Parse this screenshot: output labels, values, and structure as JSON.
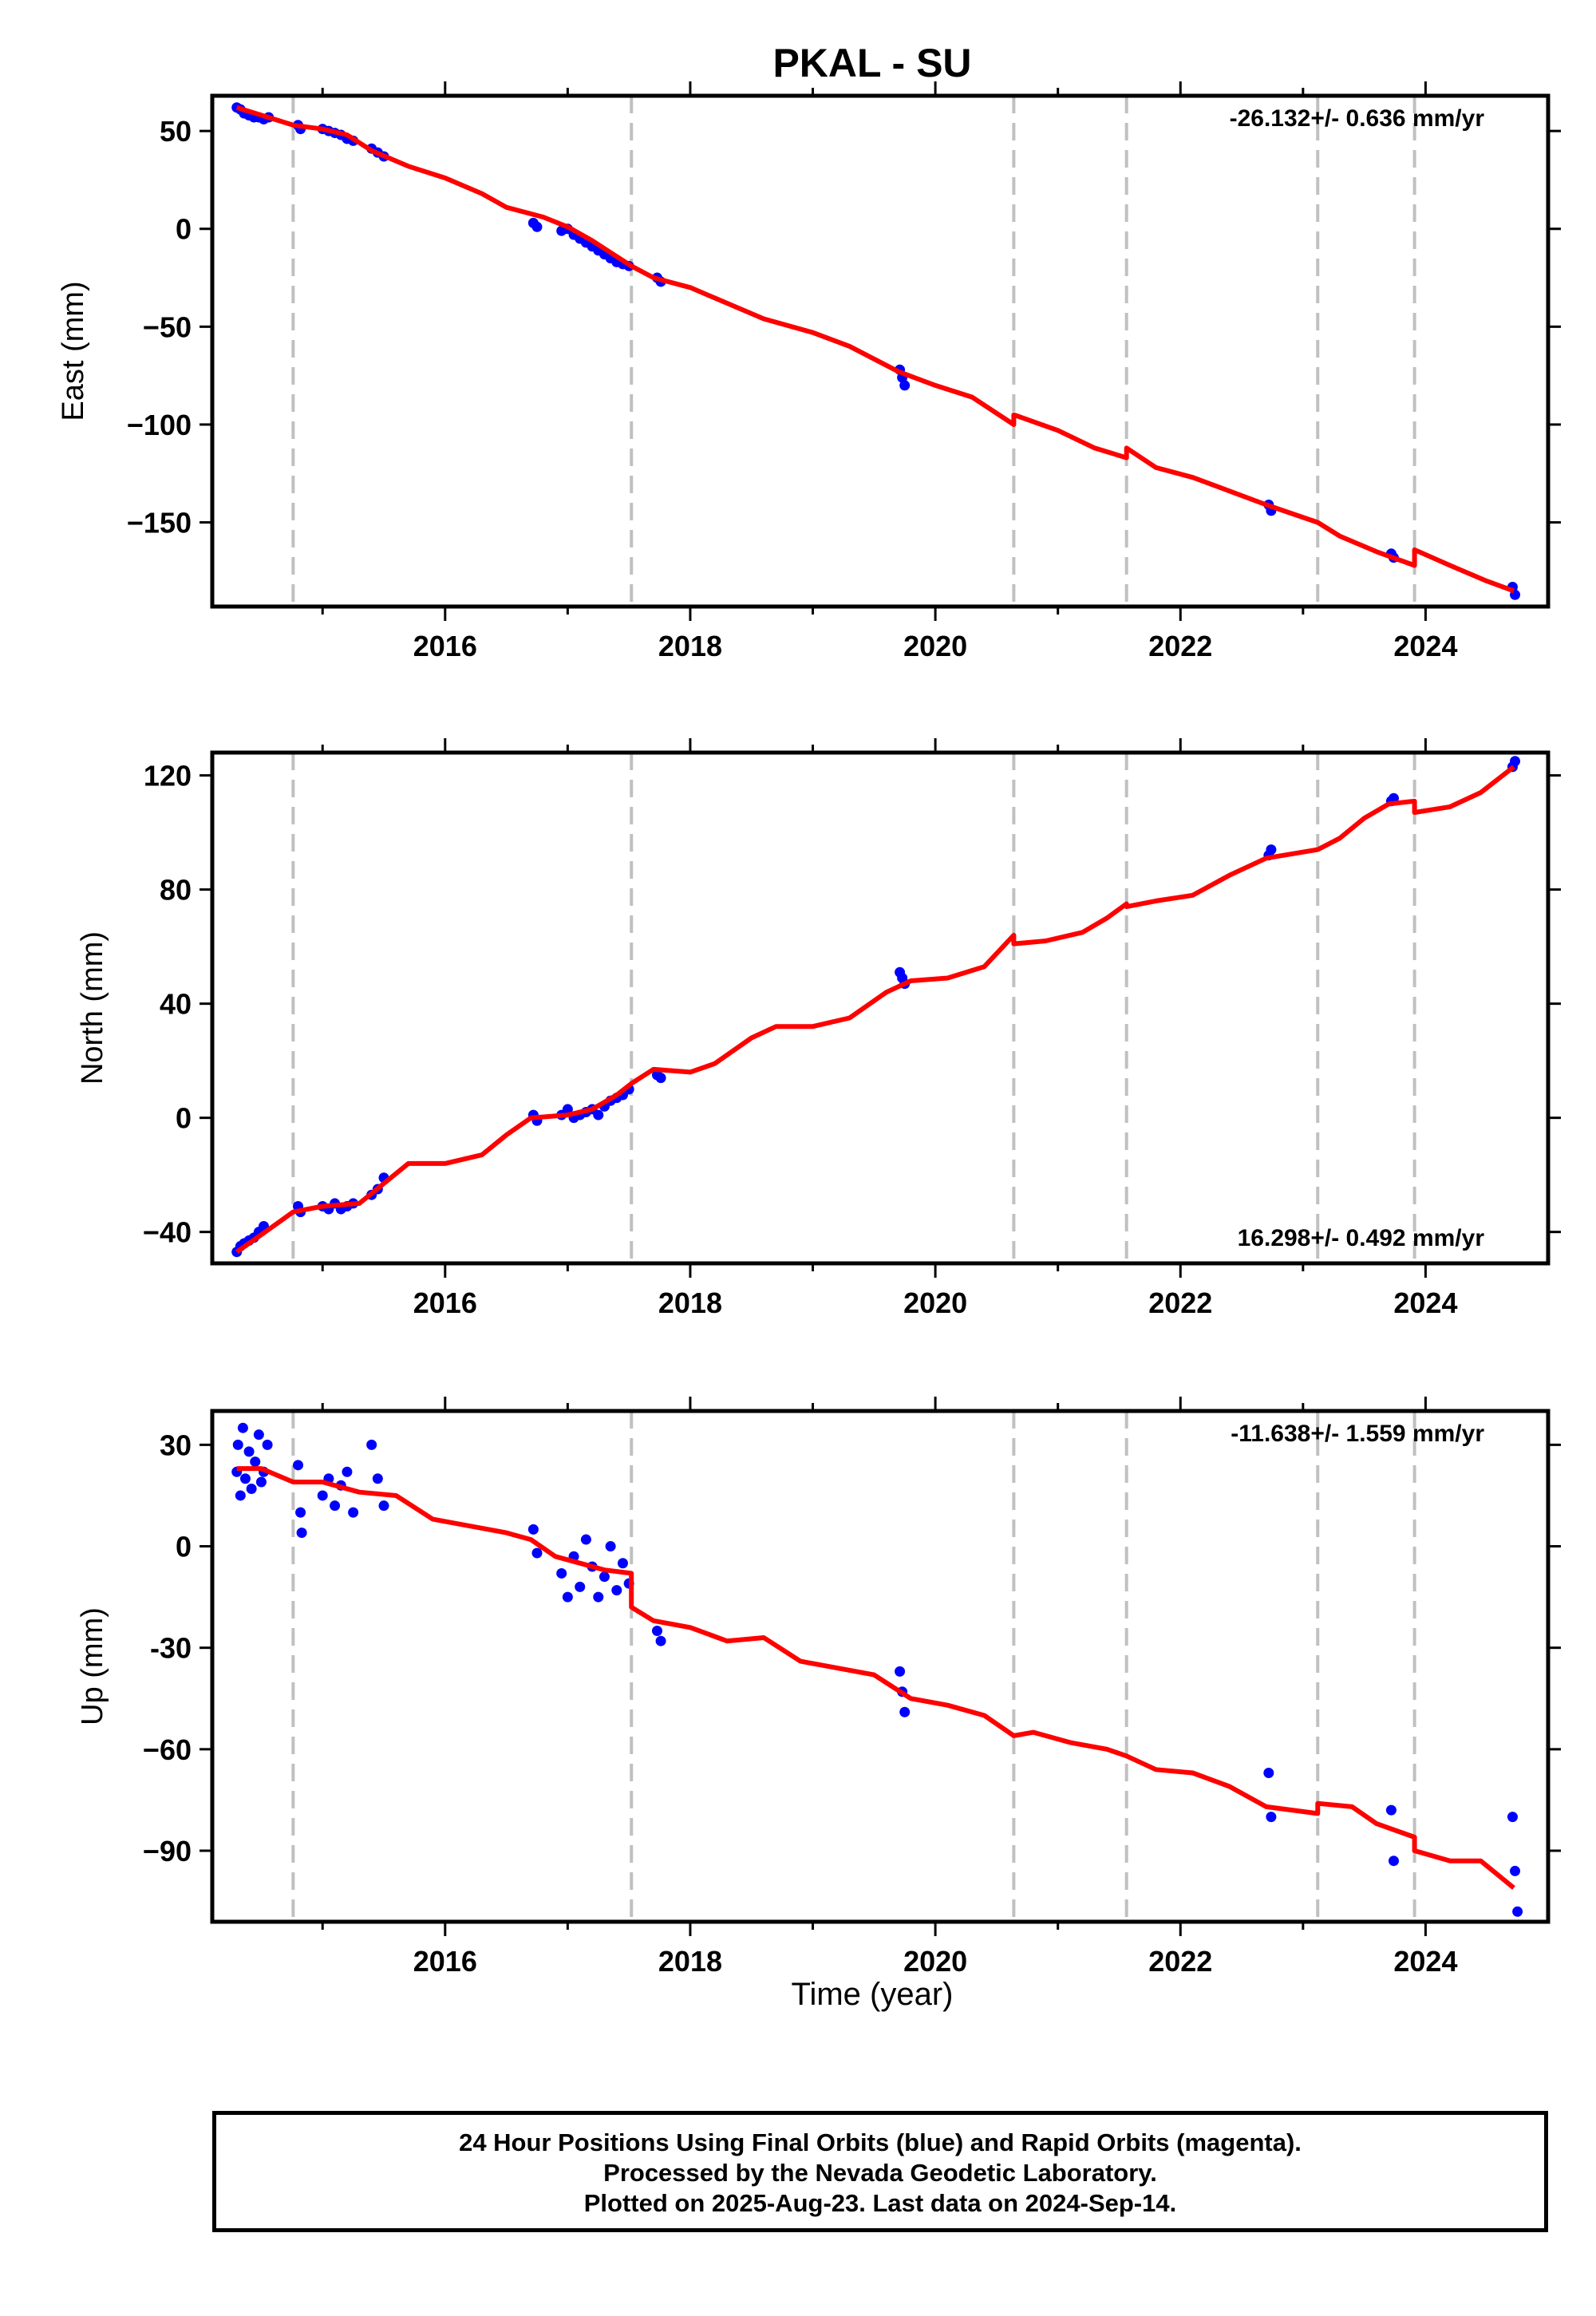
{
  "chart_data": {
    "type": "scatter",
    "title": "PKAL - SU",
    "xlabel": "Time (year)",
    "xlim": [
      2014.1,
      2025.0
    ],
    "x_ticks": [
      2016,
      2018,
      2020,
      2022,
      2024
    ],
    "colors": {
      "observations": "#0000ff",
      "model": "#ff0000",
      "events": "#c0c0c0",
      "axes": "#000000"
    },
    "event_lines": [
      2014.76,
      2017.52,
      2020.64,
      2021.56,
      2023.12,
      2023.91
    ],
    "panels": [
      {
        "id": "east",
        "ylabel": "East (mm)",
        "ylim": [
          -193,
          68
        ],
        "y_ticks": [
          50,
          0,
          -50,
          -100,
          -150
        ],
        "y_tick_labels": [
          "50",
          "0",
          "−50",
          "−100",
          "−150"
        ],
        "rate_label": "-26.132+/- 0.636 mm/yr",
        "rate_position": "top-right",
        "model": [
          [
            2014.3,
            62
          ],
          [
            2014.76,
            53
          ],
          [
            2015.0,
            51
          ],
          [
            2015.2,
            48
          ],
          [
            2015.4,
            40
          ],
          [
            2015.7,
            32
          ],
          [
            2016.0,
            26
          ],
          [
            2016.3,
            18
          ],
          [
            2016.5,
            11
          ],
          [
            2016.8,
            6
          ],
          [
            2017.0,
            1
          ],
          [
            2017.2,
            -6
          ],
          [
            2017.52,
            -19
          ],
          [
            2017.7,
            -25
          ],
          [
            2018.0,
            -30
          ],
          [
            2018.3,
            -38
          ],
          [
            2018.6,
            -46
          ],
          [
            2019.0,
            -53
          ],
          [
            2019.3,
            -60
          ],
          [
            2019.7,
            -73
          ],
          [
            2020.0,
            -80
          ],
          [
            2020.3,
            -86
          ],
          [
            2020.64,
            -100
          ],
          [
            2020.64,
            -95
          ],
          [
            2021.0,
            -103
          ],
          [
            2021.3,
            -112
          ],
          [
            2021.56,
            -117
          ],
          [
            2021.56,
            -112
          ],
          [
            2021.8,
            -122
          ],
          [
            2022.1,
            -127
          ],
          [
            2022.4,
            -134
          ],
          [
            2022.7,
            -141
          ],
          [
            2023.12,
            -150
          ],
          [
            2023.3,
            -157
          ],
          [
            2023.6,
            -165
          ],
          [
            2023.91,
            -172
          ],
          [
            2023.91,
            -164
          ],
          [
            2024.2,
            -172
          ],
          [
            2024.5,
            -180
          ],
          [
            2024.72,
            -185
          ]
        ],
        "observations": [
          [
            2014.3,
            62
          ],
          [
            2014.33,
            61
          ],
          [
            2014.36,
            59
          ],
          [
            2014.4,
            58
          ],
          [
            2014.44,
            57
          ],
          [
            2014.48,
            57
          ],
          [
            2014.52,
            56
          ],
          [
            2014.56,
            57
          ],
          [
            2014.8,
            53
          ],
          [
            2014.82,
            51
          ],
          [
            2015.0,
            51
          ],
          [
            2015.05,
            50
          ],
          [
            2015.1,
            49
          ],
          [
            2015.15,
            48
          ],
          [
            2015.2,
            46
          ],
          [
            2015.25,
            45
          ],
          [
            2015.4,
            41
          ],
          [
            2015.45,
            39
          ],
          [
            2015.5,
            37
          ],
          [
            2016.72,
            3
          ],
          [
            2016.75,
            1
          ],
          [
            2016.95,
            -1
          ],
          [
            2017.0,
            0
          ],
          [
            2017.05,
            -3
          ],
          [
            2017.1,
            -5
          ],
          [
            2017.15,
            -7
          ],
          [
            2017.2,
            -9
          ],
          [
            2017.25,
            -11
          ],
          [
            2017.3,
            -13
          ],
          [
            2017.35,
            -15
          ],
          [
            2017.4,
            -17
          ],
          [
            2017.45,
            -18
          ],
          [
            2017.5,
            -19
          ],
          [
            2017.73,
            -25
          ],
          [
            2017.76,
            -27
          ],
          [
            2019.71,
            -72
          ],
          [
            2019.73,
            -76
          ],
          [
            2019.75,
            -80
          ],
          [
            2022.72,
            -141
          ],
          [
            2022.74,
            -144
          ],
          [
            2023.72,
            -166
          ],
          [
            2023.74,
            -168
          ],
          [
            2024.71,
            -183
          ],
          [
            2024.73,
            -187
          ]
        ]
      },
      {
        "id": "north",
        "ylabel": "North (mm)",
        "ylim": [
          -51,
          128
        ],
        "y_ticks": [
          120,
          80,
          40,
          0,
          -40
        ],
        "y_tick_labels": [
          "120",
          "80",
          "40",
          "0",
          "−40"
        ],
        "rate_label": "16.298+/- 0.492 mm/yr",
        "rate_position": "bottom-right",
        "model": [
          [
            2014.3,
            -47
          ],
          [
            2014.5,
            -41
          ],
          [
            2014.76,
            -33
          ],
          [
            2015.0,
            -31
          ],
          [
            2015.3,
            -30
          ],
          [
            2015.5,
            -23
          ],
          [
            2015.7,
            -16
          ],
          [
            2016.0,
            -16
          ],
          [
            2016.3,
            -13
          ],
          [
            2016.5,
            -6
          ],
          [
            2016.7,
            0
          ],
          [
            2017.0,
            1
          ],
          [
            2017.2,
            3
          ],
          [
            2017.4,
            8
          ],
          [
            2017.52,
            12
          ],
          [
            2017.7,
            17
          ],
          [
            2018.0,
            16
          ],
          [
            2018.2,
            19
          ],
          [
            2018.5,
            28
          ],
          [
            2018.7,
            32
          ],
          [
            2019.0,
            32
          ],
          [
            2019.3,
            35
          ],
          [
            2019.6,
            44
          ],
          [
            2019.8,
            48
          ],
          [
            2020.1,
            49
          ],
          [
            2020.4,
            53
          ],
          [
            2020.64,
            64
          ],
          [
            2020.64,
            61
          ],
          [
            2020.9,
            62
          ],
          [
            2021.2,
            65
          ],
          [
            2021.4,
            70
          ],
          [
            2021.56,
            75
          ],
          [
            2021.56,
            74
          ],
          [
            2021.8,
            76
          ],
          [
            2022.1,
            78
          ],
          [
            2022.4,
            85
          ],
          [
            2022.7,
            91
          ],
          [
            2023.12,
            94
          ],
          [
            2023.3,
            98
          ],
          [
            2023.5,
            105
          ],
          [
            2023.7,
            110
          ],
          [
            2023.91,
            111
          ],
          [
            2023.91,
            107
          ],
          [
            2024.2,
            109
          ],
          [
            2024.45,
            114
          ],
          [
            2024.72,
            123
          ]
        ],
        "observations": [
          [
            2014.3,
            -47
          ],
          [
            2014.33,
            -45
          ],
          [
            2014.36,
            -44
          ],
          [
            2014.4,
            -43
          ],
          [
            2014.44,
            -42
          ],
          [
            2014.48,
            -40
          ],
          [
            2014.52,
            -38
          ],
          [
            2014.8,
            -31
          ],
          [
            2014.82,
            -33
          ],
          [
            2015.0,
            -31
          ],
          [
            2015.05,
            -32
          ],
          [
            2015.1,
            -30
          ],
          [
            2015.15,
            -32
          ],
          [
            2015.2,
            -31
          ],
          [
            2015.25,
            -30
          ],
          [
            2015.4,
            -27
          ],
          [
            2015.45,
            -25
          ],
          [
            2015.5,
            -21
          ],
          [
            2016.72,
            1
          ],
          [
            2016.75,
            -1
          ],
          [
            2016.95,
            1
          ],
          [
            2017.0,
            3
          ],
          [
            2017.05,
            0
          ],
          [
            2017.1,
            1
          ],
          [
            2017.15,
            2
          ],
          [
            2017.2,
            3
          ],
          [
            2017.25,
            1
          ],
          [
            2017.3,
            4
          ],
          [
            2017.35,
            6
          ],
          [
            2017.4,
            7
          ],
          [
            2017.45,
            8
          ],
          [
            2017.5,
            10
          ],
          [
            2017.73,
            15
          ],
          [
            2017.76,
            14
          ],
          [
            2019.71,
            51
          ],
          [
            2019.73,
            49
          ],
          [
            2019.75,
            47
          ],
          [
            2022.72,
            92
          ],
          [
            2022.74,
            94
          ],
          [
            2023.72,
            111
          ],
          [
            2023.74,
            112
          ],
          [
            2024.71,
            123
          ],
          [
            2024.73,
            125
          ]
        ]
      },
      {
        "id": "up",
        "ylabel": "Up (mm)",
        "ylim": [
          -111,
          40
        ],
        "y_ticks": [
          30,
          0,
          -30,
          -60,
          -90
        ],
        "y_tick_labels": [
          "30",
          "0",
          "-30",
          "−60",
          "−90"
        ],
        "rate_label": "-11.638+/- 1.559 mm/yr",
        "rate_position": "top-right",
        "model": [
          [
            2014.3,
            23
          ],
          [
            2014.5,
            23
          ],
          [
            2014.76,
            19
          ],
          [
            2015.0,
            19
          ],
          [
            2015.3,
            16
          ],
          [
            2015.6,
            15
          ],
          [
            2015.9,
            8
          ],
          [
            2016.2,
            6
          ],
          [
            2016.5,
            4
          ],
          [
            2016.7,
            2
          ],
          [
            2016.9,
            -3
          ],
          [
            2017.1,
            -5
          ],
          [
            2017.3,
            -7
          ],
          [
            2017.52,
            -8
          ],
          [
            2017.52,
            -18
          ],
          [
            2017.7,
            -22
          ],
          [
            2018.0,
            -24
          ],
          [
            2018.3,
            -28
          ],
          [
            2018.6,
            -27
          ],
          [
            2018.9,
            -34
          ],
          [
            2019.2,
            -36
          ],
          [
            2019.5,
            -38
          ],
          [
            2019.8,
            -45
          ],
          [
            2020.1,
            -47
          ],
          [
            2020.4,
            -50
          ],
          [
            2020.64,
            -56
          ],
          [
            2020.8,
            -55
          ],
          [
            2021.1,
            -58
          ],
          [
            2021.4,
            -60
          ],
          [
            2021.56,
            -62
          ],
          [
            2021.8,
            -66
          ],
          [
            2022.1,
            -67
          ],
          [
            2022.4,
            -71
          ],
          [
            2022.7,
            -77
          ],
          [
            2023.12,
            -79
          ],
          [
            2023.12,
            -76
          ],
          [
            2023.4,
            -77
          ],
          [
            2023.6,
            -82
          ],
          [
            2023.91,
            -86
          ],
          [
            2023.91,
            -90
          ],
          [
            2024.2,
            -93
          ],
          [
            2024.45,
            -93
          ],
          [
            2024.72,
            -101
          ]
        ],
        "observations": [
          [
            2014.3,
            22
          ],
          [
            2014.31,
            30
          ],
          [
            2014.33,
            15
          ],
          [
            2014.35,
            35
          ],
          [
            2014.37,
            20
          ],
          [
            2014.4,
            28
          ],
          [
            2014.42,
            17
          ],
          [
            2014.45,
            25
          ],
          [
            2014.48,
            33
          ],
          [
            2014.5,
            19
          ],
          [
            2014.52,
            22
          ],
          [
            2014.55,
            30
          ],
          [
            2014.8,
            24
          ],
          [
            2014.82,
            10
          ],
          [
            2014.83,
            4
          ],
          [
            2015.0,
            15
          ],
          [
            2015.05,
            20
          ],
          [
            2015.1,
            12
          ],
          [
            2015.15,
            18
          ],
          [
            2015.2,
            22
          ],
          [
            2015.25,
            10
          ],
          [
            2015.4,
            30
          ],
          [
            2015.45,
            20
          ],
          [
            2015.5,
            12
          ],
          [
            2016.72,
            5
          ],
          [
            2016.75,
            -2
          ],
          [
            2016.95,
            -8
          ],
          [
            2017.0,
            -15
          ],
          [
            2017.05,
            -3
          ],
          [
            2017.1,
            -12
          ],
          [
            2017.15,
            2
          ],
          [
            2017.2,
            -6
          ],
          [
            2017.25,
            -15
          ],
          [
            2017.3,
            -9
          ],
          [
            2017.35,
            0
          ],
          [
            2017.4,
            -13
          ],
          [
            2017.45,
            -5
          ],
          [
            2017.5,
            -11
          ],
          [
            2017.73,
            -25
          ],
          [
            2017.76,
            -28
          ],
          [
            2019.71,
            -37
          ],
          [
            2019.73,
            -43
          ],
          [
            2019.75,
            -49
          ],
          [
            2022.72,
            -67
          ],
          [
            2022.74,
            -80
          ],
          [
            2023.72,
            -78
          ],
          [
            2023.74,
            -93
          ],
          [
            2024.71,
            -80
          ],
          [
            2024.73,
            -96
          ],
          [
            2024.75,
            -108
          ]
        ]
      }
    ]
  },
  "footer": {
    "line1": "24 Hour Positions Using Final Orbits (blue) and Rapid Orbits (magenta).",
    "line2": "Processed by the Nevada Geodetic Laboratory.",
    "line3": "Plotted on 2025-Aug-23. Last data on 2024-Sep-14."
  }
}
